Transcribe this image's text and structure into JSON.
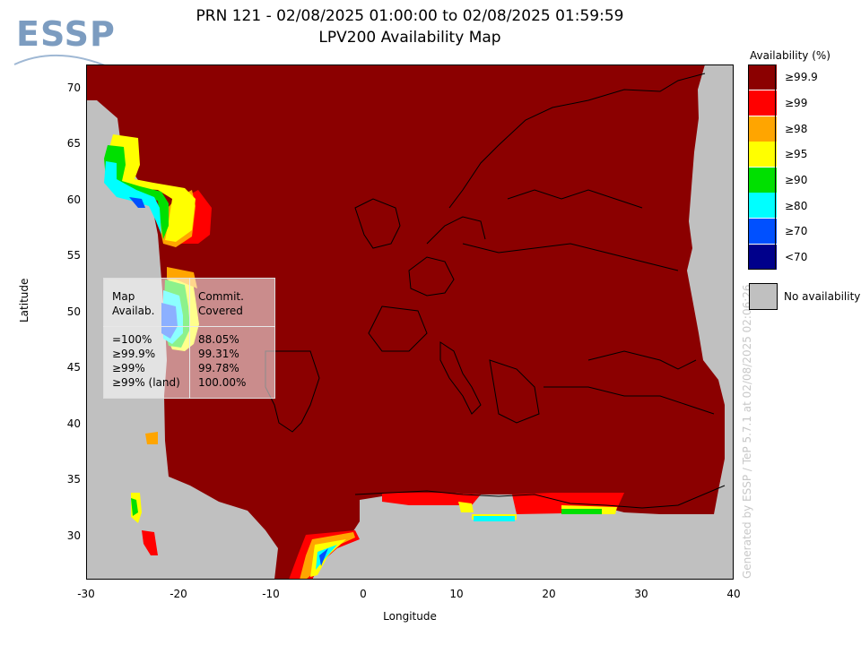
{
  "logo": {
    "text": "ESSP"
  },
  "title": {
    "line1": "PRN 121 - 02/08/2025 01:00:00 to 02/08/2025 01:59:59",
    "line2": "LPV200 Availability Map"
  },
  "axes": {
    "xlabel": "Longitude",
    "ylabel": "Latitude",
    "x_ticks": [
      "-30",
      "-20",
      "-10",
      "0",
      "10",
      "20",
      "30",
      "40"
    ],
    "y_ticks": [
      "70",
      "65",
      "60",
      "55",
      "50",
      "45",
      "40",
      "35",
      "30"
    ],
    "xlim": [
      -30,
      40
    ],
    "ylim": [
      26,
      72
    ]
  },
  "legend": {
    "title": "Availability (%)",
    "items": [
      {
        "label": "≥99.9",
        "color": "#8b0000"
      },
      {
        "label": "≥99",
        "color": "#ff0000"
      },
      {
        "label": "≥98",
        "color": "#ffa500"
      },
      {
        "label": "≥95",
        "color": "#ffff00"
      },
      {
        "label": "≥90",
        "color": "#00e000"
      },
      {
        "label": "≥80",
        "color": "#00ffff"
      },
      {
        "label": "≥70",
        "color": "#0050ff"
      },
      {
        "label": "<70",
        "color": "#00008b"
      }
    ],
    "no_availability": {
      "label": "No availability",
      "color": "#c0c0c0"
    }
  },
  "stats": {
    "col1_header": [
      "Map",
      "Availab."
    ],
    "col2_header": [
      "Commit.",
      "Covered"
    ],
    "rows": [
      {
        "name": "=100%",
        "value": "88.05%"
      },
      {
        "name": "≥99.9%",
        "value": "99.31%"
      },
      {
        "name": "≥99%",
        "value": "99.78%"
      },
      {
        "name": "≥99% (land)",
        "value": "100.00%"
      }
    ]
  },
  "watermark": "Generated by ESSP / TeP 5.7.1 at 02/08/2025 02:06:26"
}
